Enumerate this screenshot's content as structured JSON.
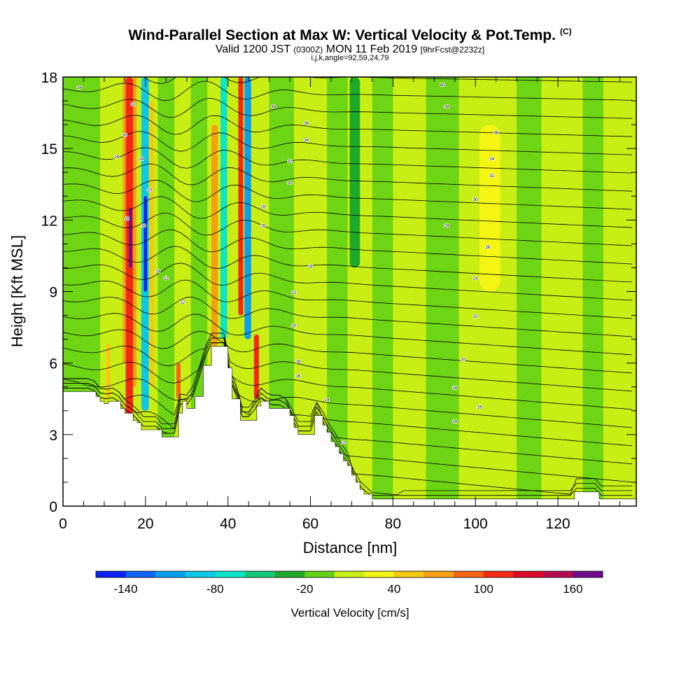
{
  "header": {
    "title": "Wind-Parallel Section at Max W: Vertical Velocity & Pot.Temp.",
    "title_mark": "(C)",
    "valid_prefix": "Valid 1200 JST",
    "valid_zulu": "(0300Z)",
    "valid_date": "MON 11 Feb 2019",
    "forecast": "[9hrFcst@2232z]",
    "indices": "i,j,k,angle=92,59,24,79"
  },
  "chart_data": {
    "type": "heatmap",
    "title": "Wind-Parallel Section at Max W: Vertical Velocity & Pot.Temp.",
    "xlabel": "Distance [nm]",
    "ylabel": "Height [Kft MSL]",
    "xlim": [
      0,
      139
    ],
    "ylim": [
      0,
      18
    ],
    "x_ticks": [
      "0",
      "20",
      "40",
      "60",
      "80",
      "100",
      "120"
    ],
    "y_ticks": [
      "0",
      "3",
      "6",
      "9",
      "12",
      "15",
      "18"
    ],
    "colorbar": {
      "label": "Vertical Velocity [cm/s]",
      "tick_labels": [
        "-140",
        "-80",
        "-20",
        "40",
        "100",
        "160"
      ],
      "tick_values": [
        -140,
        -80,
        -20,
        40,
        100,
        160
      ],
      "bins": [
        {
          "min": -160,
          "max": -140,
          "color": "#0a1ef5"
        },
        {
          "min": -140,
          "max": -120,
          "color": "#0a64f5"
        },
        {
          "min": -120,
          "max": -100,
          "color": "#0aa0f0"
        },
        {
          "min": -100,
          "max": -80,
          "color": "#0ac8e6"
        },
        {
          "min": -80,
          "max": -60,
          "color": "#0ae6c8"
        },
        {
          "min": -60,
          "max": -40,
          "color": "#14c878"
        },
        {
          "min": -40,
          "max": -20,
          "color": "#1eaa28"
        },
        {
          "min": -20,
          "max": 0,
          "color": "#64d214"
        },
        {
          "min": 0,
          "max": 20,
          "color": "#c8ee14"
        },
        {
          "min": 20,
          "max": 40,
          "color": "#f5f514"
        },
        {
          "min": 40,
          "max": 60,
          "color": "#f5c814"
        },
        {
          "min": 60,
          "max": 80,
          "color": "#f5a014"
        },
        {
          "min": 80,
          "max": 100,
          "color": "#f56414"
        },
        {
          "min": 100,
          "max": 120,
          "color": "#f52814"
        },
        {
          "min": 120,
          "max": 140,
          "color": "#dc0a28"
        },
        {
          "min": 140,
          "max": 160,
          "color": "#b40a50"
        },
        {
          "min": 160,
          "max": 180,
          "color": "#6e0a8c"
        }
      ]
    },
    "terrain": [
      [
        0,
        4.8
      ],
      [
        7,
        4.8
      ],
      [
        8,
        4.6
      ],
      [
        9,
        4.4
      ],
      [
        10,
        4.3
      ],
      [
        11,
        4.4
      ],
      [
        13,
        4.4
      ],
      [
        14,
        4.1
      ],
      [
        15,
        3.9
      ],
      [
        16,
        3.9
      ],
      [
        17,
        3.6
      ],
      [
        18,
        3.5
      ],
      [
        19,
        3.2
      ],
      [
        23,
        3.2
      ],
      [
        24,
        2.9
      ],
      [
        27,
        2.9
      ],
      [
        28,
        3.9
      ],
      [
        29,
        4.4
      ],
      [
        30,
        4.1
      ],
      [
        32,
        4.6
      ],
      [
        34,
        5.9
      ],
      [
        36,
        6.7
      ],
      [
        39,
        6.7
      ],
      [
        40,
        5.8
      ],
      [
        41,
        4.5
      ],
      [
        42,
        4.5
      ],
      [
        43,
        3.6
      ],
      [
        46,
        3.6
      ],
      [
        47,
        4.2
      ],
      [
        48,
        4.4
      ],
      [
        50,
        4.1
      ],
      [
        53,
        4.1
      ],
      [
        55,
        3.8
      ],
      [
        56,
        3.3
      ],
      [
        57,
        3.0
      ],
      [
        60,
        3.0
      ],
      [
        61,
        3.8
      ],
      [
        62,
        3.8
      ],
      [
        63,
        3.4
      ],
      [
        64,
        3.1
      ],
      [
        65,
        2.7
      ],
      [
        66,
        2.5
      ],
      [
        67,
        2.2
      ],
      [
        68,
        1.9
      ],
      [
        69,
        1.7
      ],
      [
        70,
        1.3
      ],
      [
        71,
        1.0
      ],
      [
        72,
        0.7
      ],
      [
        73,
        0.5
      ],
      [
        75,
        0.3
      ],
      [
        123,
        0.3
      ],
      [
        124,
        0.6
      ],
      [
        129,
        0.6
      ],
      [
        130,
        0.3
      ],
      [
        139,
        0.3
      ]
    ],
    "vertical_velocity_cells": [
      {
        "x": [
          15.2,
          17.0
        ],
        "y": [
          3.8,
          18
        ],
        "value": 110
      },
      {
        "x": [
          16.0,
          16.7
        ],
        "y": [
          10,
          12.5
        ],
        "value": 165
      },
      {
        "x": [
          14.5,
          15.2
        ],
        "y": [
          6,
          18
        ],
        "value": 60
      },
      {
        "x": [
          17.0,
          17.8
        ],
        "y": [
          5,
          18
        ],
        "value": 60
      },
      {
        "x": [
          19.0,
          20.8
        ],
        "y": [
          4,
          18
        ],
        "value": -90
      },
      {
        "x": [
          19.6,
          20.4
        ],
        "y": [
          9,
          13
        ],
        "value": -150
      },
      {
        "x": [
          21.0,
          22.0
        ],
        "y": [
          5,
          17
        ],
        "value": 45
      },
      {
        "x": [
          36.0,
          37.5
        ],
        "y": [
          6.7,
          16
        ],
        "value": 70
      },
      {
        "x": [
          38.2,
          39.8
        ],
        "y": [
          7,
          18
        ],
        "value": -80
      },
      {
        "x": [
          42.5,
          43.7
        ],
        "y": [
          8,
          18
        ],
        "value": 110
      },
      {
        "x": [
          44.0,
          45.6
        ],
        "y": [
          7,
          18
        ],
        "value": -110
      },
      {
        "x": [
          46.3,
          47.5
        ],
        "y": [
          4.5,
          7.2
        ],
        "value": 100
      },
      {
        "x": [
          10.5,
          11.5
        ],
        "y": [
          4.5,
          6.8
        ],
        "value": 45
      },
      {
        "x": [
          27.5,
          28.5
        ],
        "y": [
          4.5,
          6
        ],
        "value": 85
      },
      {
        "x": [
          101.0,
          106.0
        ],
        "y": [
          9,
          16
        ],
        "value": 30
      },
      {
        "x": [
          69.5,
          72.0
        ],
        "y": [
          10,
          18
        ],
        "value": -30
      }
    ],
    "pot_temp_labels": [
      {
        "x": 4,
        "y": 17.5,
        "label": "36"
      },
      {
        "x": 17,
        "y": 16.8,
        "label": "32"
      },
      {
        "x": 15,
        "y": 15.5,
        "label": "30"
      },
      {
        "x": 13,
        "y": 14.6,
        "label": "28"
      },
      {
        "x": 19,
        "y": 14.5,
        "label": "24"
      },
      {
        "x": 21,
        "y": 13.2,
        "label": "20"
      },
      {
        "x": 15.5,
        "y": 12.0,
        "label": "18"
      },
      {
        "x": 19.5,
        "y": 11.7,
        "label": "16"
      },
      {
        "x": 23,
        "y": 9.8,
        "label": "14"
      },
      {
        "x": 25,
        "y": 9.5,
        "label": "12"
      },
      {
        "x": 29,
        "y": 8.5,
        "label": "12"
      },
      {
        "x": 51,
        "y": 16.7,
        "label": "38"
      },
      {
        "x": 59,
        "y": 16.0,
        "label": "36"
      },
      {
        "x": 59,
        "y": 15.3,
        "label": "34"
      },
      {
        "x": 55,
        "y": 14.4,
        "label": "32"
      },
      {
        "x": 55,
        "y": 13.5,
        "label": "30"
      },
      {
        "x": 48.5,
        "y": 12.5,
        "label": "28"
      },
      {
        "x": 48.5,
        "y": 11.7,
        "label": "26"
      },
      {
        "x": 60,
        "y": 10.0,
        "label": "24"
      },
      {
        "x": 56,
        "y": 8.9,
        "label": "22"
      },
      {
        "x": 56,
        "y": 7.5,
        "label": "20"
      },
      {
        "x": 57,
        "y": 6.0,
        "label": "18"
      },
      {
        "x": 57,
        "y": 5.4,
        "label": "16"
      },
      {
        "x": 64,
        "y": 4.4,
        "label": "14"
      },
      {
        "x": 68,
        "y": 2.6,
        "label": "12"
      },
      {
        "x": 92,
        "y": 17.6,
        "label": "40"
      },
      {
        "x": 93,
        "y": 16.7,
        "label": "38"
      },
      {
        "x": 105,
        "y": 15.6,
        "label": "36"
      },
      {
        "x": 104,
        "y": 14.5,
        "label": "34"
      },
      {
        "x": 104,
        "y": 13.8,
        "label": "32"
      },
      {
        "x": 100,
        "y": 12.8,
        "label": "30"
      },
      {
        "x": 93,
        "y": 11.7,
        "label": "28"
      },
      {
        "x": 103,
        "y": 10.8,
        "label": "26"
      },
      {
        "x": 100,
        "y": 9.5,
        "label": "24"
      },
      {
        "x": 100,
        "y": 7.9,
        "label": "22"
      },
      {
        "x": 97,
        "y": 6.1,
        "label": "20"
      },
      {
        "x": 95,
        "y": 4.9,
        "label": "18"
      },
      {
        "x": 101,
        "y": 4.1,
        "label": "16"
      },
      {
        "x": 95,
        "y": 3.5,
        "label": "14"
      }
    ]
  }
}
